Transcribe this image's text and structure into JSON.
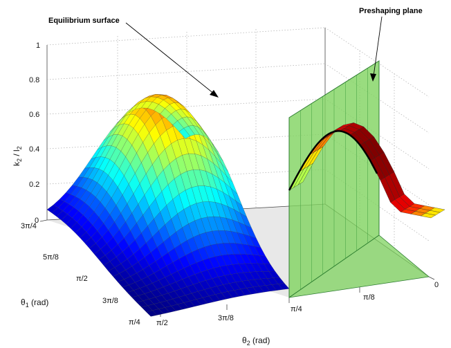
{
  "chart_data": {
    "type": "surface3d",
    "title": "",
    "z_axis": {
      "label": "k2 / l2",
      "label_main": "k",
      "label_sub1": "2",
      "label_sep": " / l",
      "label_sub2": "2",
      "ticks": [
        "0",
        "0.2",
        "0.4",
        "0.6",
        "0.8",
        "1"
      ],
      "range": [
        0,
        1
      ]
    },
    "theta1_axis": {
      "label": "θ1 (rad)",
      "label_main": "θ",
      "label_sub": "1",
      "label_unit": " (rad)",
      "ticks": [
        "3π/4",
        "5π/8",
        "π/2",
        "3π/8",
        "π/4"
      ],
      "range_rad": [
        0.7854,
        2.3562
      ]
    },
    "theta2_axis": {
      "label": "θ2 (rad)",
      "label_main": "θ",
      "label_sub": "2",
      "label_unit": " (rad)",
      "ticks": [
        "π/2",
        "3π/8",
        "π/4",
        "π/8",
        "0"
      ],
      "range_rad": [
        0,
        1.5708
      ]
    },
    "surface": {
      "name": "Equilibrium surface",
      "colormap": "jet",
      "mesh_resolution": 22,
      "peak_value": 1.0,
      "value_at_preshaping_edge": 0.2
    },
    "plane": {
      "name": "Preshaping plane",
      "theta2": 0.7854,
      "color": "#7fd35f"
    },
    "annotations": [
      {
        "text": "Equilibrium surface",
        "points_to": "surface"
      },
      {
        "text": "Preshaping plane",
        "points_to": "plane"
      }
    ],
    "grid": true
  }
}
